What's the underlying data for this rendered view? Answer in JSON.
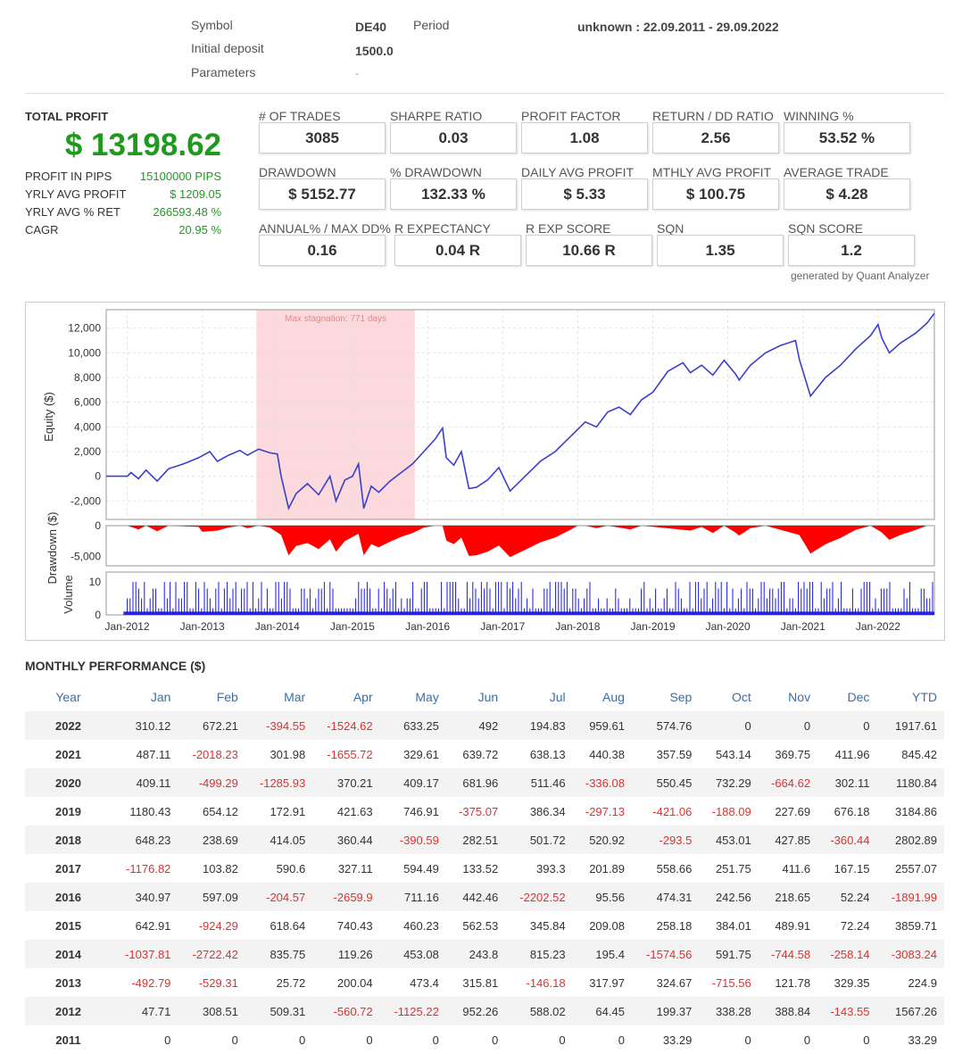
{
  "header": {
    "symbol_label": "Symbol",
    "symbol_value": "DE40",
    "period_label": "Period",
    "period_value": "unknown : 22.09.2011 - 29.09.2022",
    "deposit_label": "Initial deposit",
    "deposit_value": "1500.0",
    "params_label": "Parameters",
    "params_value": "-"
  },
  "total_profit": {
    "title": "TOTAL PROFIT",
    "value": "$ 13198.62",
    "rows": [
      {
        "key": "PROFIT IN PIPS",
        "value": "15100000 PIPS"
      },
      {
        "key": "YRLY AVG PROFIT",
        "value": "$ 1209.05"
      },
      {
        "key": "YRLY AVG % RET",
        "value": "266593.48 %"
      },
      {
        "key": "CAGR",
        "value": "20.95 %"
      }
    ]
  },
  "stats": [
    {
      "label": "# OF TRADES",
      "value": "3085"
    },
    {
      "label": "SHARPE RATIO",
      "value": "0.03"
    },
    {
      "label": "PROFIT FACTOR",
      "value": "1.08"
    },
    {
      "label": "RETURN / DD RATIO",
      "value": "2.56"
    },
    {
      "label": "WINNING %",
      "value": "53.52 %"
    },
    {
      "label": "DRAWDOWN",
      "value": "$ 5152.77"
    },
    {
      "label": "% DRAWDOWN",
      "value": "132.33 %"
    },
    {
      "label": "DAILY AVG PROFIT",
      "value": "$ 5.33"
    },
    {
      "label": "MTHLY AVG PROFIT",
      "value": "$ 100.75"
    },
    {
      "label": "AVERAGE TRADE",
      "value": "$ 4.28"
    },
    {
      "label": "ANNUAL% / MAX DD%",
      "value": "0.16"
    },
    {
      "label": "R EXPECTANCY",
      "value": "0.04 R"
    },
    {
      "label": "R EXP SCORE",
      "value": "10.66 R"
    },
    {
      "label": "SQN",
      "value": "1.35"
    },
    {
      "label": "SQN SCORE",
      "value": "1.2"
    }
  ],
  "generated_by": "generated by Quant Analyzer",
  "chart_data": {
    "type": "line",
    "equity_ylabel": "Equity ($)",
    "drawdown_ylabel": "Drawdown ($)",
    "volume_ylabel": "Volume",
    "equity_yticks": [
      "12,000",
      "10,000",
      "8,000",
      "6,000",
      "4,000",
      "2,000",
      "0",
      "-2,000"
    ],
    "drawdown_yticks": [
      "0",
      "-5,000"
    ],
    "volume_yticks": [
      "10",
      "0"
    ],
    "xticks": [
      "Jan-2012",
      "Jan-2013",
      "Jan-2014",
      "Jan-2015",
      "Jan-2016",
      "Jan-2017",
      "Jan-2018",
      "Jan-2019",
      "Jan-2020",
      "Jan-2021",
      "Jan-2022"
    ],
    "equity_ylim": [
      -3500,
      13500
    ],
    "drawdown_ylim": [
      -6500,
      0
    ],
    "volume_ylim": [
      0,
      13
    ],
    "x_range": [
      2011.72,
      2022.75
    ],
    "stagnation_label": "Max stagnation: 771 days",
    "stagnation_range": [
      2013.72,
      2015.83
    ],
    "equity_series": [
      [
        2011.72,
        0
      ],
      [
        2011.8,
        0
      ],
      [
        2012.0,
        0
      ],
      [
        2012.05,
        300
      ],
      [
        2012.15,
        -200
      ],
      [
        2012.25,
        500
      ],
      [
        2012.4,
        -400
      ],
      [
        2012.55,
        600
      ],
      [
        2012.75,
        1000
      ],
      [
        2012.95,
        1500
      ],
      [
        2013.1,
        2000
      ],
      [
        2013.2,
        1200
      ],
      [
        2013.35,
        1700
      ],
      [
        2013.5,
        2100
      ],
      [
        2013.6,
        1700
      ],
      [
        2013.75,
        2200
      ],
      [
        2013.9,
        1900
      ],
      [
        2014.0,
        1800
      ],
      [
        2014.05,
        0
      ],
      [
        2014.15,
        -2600
      ],
      [
        2014.25,
        -1400
      ],
      [
        2014.4,
        -600
      ],
      [
        2014.55,
        -1500
      ],
      [
        2014.7,
        0
      ],
      [
        2014.78,
        -2000
      ],
      [
        2014.9,
        -300
      ],
      [
        2015.0,
        0
      ],
      [
        2015.08,
        1000
      ],
      [
        2015.15,
        -2600
      ],
      [
        2015.25,
        -800
      ],
      [
        2015.35,
        -1300
      ],
      [
        2015.5,
        -400
      ],
      [
        2015.65,
        300
      ],
      [
        2015.8,
        1000
      ],
      [
        2015.95,
        2000
      ],
      [
        2016.1,
        3000
      ],
      [
        2016.2,
        3900
      ],
      [
        2016.25,
        1500
      ],
      [
        2016.35,
        900
      ],
      [
        2016.45,
        2000
      ],
      [
        2016.55,
        -1000
      ],
      [
        2016.65,
        -900
      ],
      [
        2016.8,
        -300
      ],
      [
        2016.95,
        700
      ],
      [
        2017.1,
        -1200
      ],
      [
        2017.3,
        0
      ],
      [
        2017.5,
        1200
      ],
      [
        2017.7,
        2000
      ],
      [
        2017.9,
        3200
      ],
      [
        2018.1,
        4400
      ],
      [
        2018.25,
        4000
      ],
      [
        2018.4,
        5200
      ],
      [
        2018.55,
        5600
      ],
      [
        2018.7,
        5000
      ],
      [
        2018.85,
        6200
      ],
      [
        2019.0,
        6800
      ],
      [
        2019.2,
        8500
      ],
      [
        2019.4,
        9200
      ],
      [
        2019.5,
        8400
      ],
      [
        2019.65,
        9000
      ],
      [
        2019.8,
        8200
      ],
      [
        2019.95,
        9400
      ],
      [
        2020.1,
        8300
      ],
      [
        2020.15,
        7800
      ],
      [
        2020.3,
        9000
      ],
      [
        2020.5,
        10000
      ],
      [
        2020.7,
        10600
      ],
      [
        2020.9,
        11000
      ],
      [
        2020.95,
        9500
      ],
      [
        2021.1,
        6500
      ],
      [
        2021.3,
        8000
      ],
      [
        2021.5,
        9000
      ],
      [
        2021.7,
        10300
      ],
      [
        2021.9,
        11400
      ],
      [
        2022.0,
        12300
      ],
      [
        2022.05,
        11200
      ],
      [
        2022.15,
        10000
      ],
      [
        2022.3,
        10800
      ],
      [
        2022.5,
        11600
      ],
      [
        2022.65,
        12400
      ],
      [
        2022.75,
        13200
      ]
    ],
    "drawdown_series": [
      [
        2011.72,
        0
      ],
      [
        2012.0,
        0
      ],
      [
        2012.15,
        -600
      ],
      [
        2012.25,
        0
      ],
      [
        2012.4,
        -900
      ],
      [
        2012.55,
        0
      ],
      [
        2012.95,
        -200
      ],
      [
        2013.0,
        -1000
      ],
      [
        2013.2,
        -800
      ],
      [
        2013.35,
        -300
      ],
      [
        2013.5,
        0
      ],
      [
        2013.6,
        -400
      ],
      [
        2013.75,
        0
      ],
      [
        2013.9,
        -300
      ],
      [
        2014.05,
        -1500
      ],
      [
        2014.15,
        -4800
      ],
      [
        2014.25,
        -3300
      ],
      [
        2014.4,
        -2800
      ],
      [
        2014.55,
        -3800
      ],
      [
        2014.7,
        -2200
      ],
      [
        2014.78,
        -4200
      ],
      [
        2014.9,
        -2500
      ],
      [
        2015.08,
        -1300
      ],
      [
        2015.15,
        -4800
      ],
      [
        2015.25,
        -3000
      ],
      [
        2015.35,
        -3500
      ],
      [
        2015.5,
        -2600
      ],
      [
        2015.65,
        -1800
      ],
      [
        2015.8,
        -1200
      ],
      [
        2015.95,
        -300
      ],
      [
        2016.1,
        0
      ],
      [
        2016.2,
        0
      ],
      [
        2016.25,
        -2400
      ],
      [
        2016.35,
        -3000
      ],
      [
        2016.45,
        -1900
      ],
      [
        2016.55,
        -4900
      ],
      [
        2016.65,
        -4800
      ],
      [
        2016.8,
        -4200
      ],
      [
        2016.95,
        -3200
      ],
      [
        2017.1,
        -5100
      ],
      [
        2017.3,
        -3900
      ],
      [
        2017.5,
        -2700
      ],
      [
        2017.7,
        -1900
      ],
      [
        2017.9,
        -700
      ],
      [
        2018.0,
        0
      ],
      [
        2018.1,
        0
      ],
      [
        2018.25,
        -400
      ],
      [
        2018.4,
        0
      ],
      [
        2018.7,
        -600
      ],
      [
        2018.85,
        0
      ],
      [
        2019.5,
        -800
      ],
      [
        2019.65,
        -200
      ],
      [
        2019.8,
        -1200
      ],
      [
        2019.95,
        0
      ],
      [
        2020.1,
        -1100
      ],
      [
        2020.15,
        -1600
      ],
      [
        2020.3,
        -400
      ],
      [
        2020.5,
        0
      ],
      [
        2020.95,
        -1500
      ],
      [
        2021.1,
        -4500
      ],
      [
        2021.3,
        -3000
      ],
      [
        2021.5,
        -2000
      ],
      [
        2021.7,
        -700
      ],
      [
        2021.9,
        0
      ],
      [
        2022.05,
        -1100
      ],
      [
        2022.15,
        -2300
      ],
      [
        2022.3,
        -1500
      ],
      [
        2022.5,
        -700
      ],
      [
        2022.65,
        0
      ],
      [
        2022.75,
        0
      ]
    ],
    "volume_note": "trade-volume bars 0-10 across full period"
  },
  "monthly": {
    "title": "MONTHLY PERFORMANCE ($)",
    "headers": [
      "Year",
      "Jan",
      "Feb",
      "Mar",
      "Apr",
      "May",
      "Jun",
      "Jul",
      "Aug",
      "Sep",
      "Oct",
      "Nov",
      "Dec",
      "YTD"
    ],
    "rows": [
      [
        "2022",
        "310.12",
        "672.21",
        "-394.55",
        "-1524.62",
        "633.25",
        "492",
        "194.83",
        "959.61",
        "574.76",
        "0",
        "0",
        "0",
        "1917.61"
      ],
      [
        "2021",
        "487.11",
        "-2018.23",
        "301.98",
        "-1655.72",
        "329.61",
        "639.72",
        "638.13",
        "440.38",
        "357.59",
        "543.14",
        "369.75",
        "411.96",
        "845.42"
      ],
      [
        "2020",
        "409.11",
        "-499.29",
        "-1285.93",
        "370.21",
        "409.17",
        "681.96",
        "511.46",
        "-336.08",
        "550.45",
        "732.29",
        "-664.62",
        "302.11",
        "1180.84"
      ],
      [
        "2019",
        "1180.43",
        "654.12",
        "172.91",
        "421.63",
        "746.91",
        "-375.07",
        "386.34",
        "-297.13",
        "-421.06",
        "-188.09",
        "227.69",
        "676.18",
        "3184.86"
      ],
      [
        "2018",
        "648.23",
        "238.69",
        "414.05",
        "360.44",
        "-390.59",
        "282.51",
        "501.72",
        "520.92",
        "-293.5",
        "453.01",
        "427.85",
        "-360.44",
        "2802.89"
      ],
      [
        "2017",
        "-1176.82",
        "103.82",
        "590.6",
        "327.11",
        "594.49",
        "133.52",
        "393.3",
        "201.89",
        "558.66",
        "251.75",
        "411.6",
        "167.15",
        "2557.07"
      ],
      [
        "2016",
        "340.97",
        "597.09",
        "-204.57",
        "-2659.9",
        "711.16",
        "442.46",
        "-2202.52",
        "95.56",
        "474.31",
        "242.56",
        "218.65",
        "52.24",
        "-1891.99"
      ],
      [
        "2015",
        "642.91",
        "-924.29",
        "618.64",
        "740.43",
        "460.23",
        "562.53",
        "345.84",
        "209.08",
        "258.18",
        "384.01",
        "489.91",
        "72.24",
        "3859.71"
      ],
      [
        "2014",
        "-1037.81",
        "-2722.42",
        "835.75",
        "119.26",
        "453.08",
        "243.8",
        "815.23",
        "195.4",
        "-1574.56",
        "591.75",
        "-744.58",
        "-258.14",
        "-3083.24"
      ],
      [
        "2013",
        "-492.79",
        "-529.31",
        "25.72",
        "200.04",
        "473.4",
        "315.81",
        "-146.18",
        "317.97",
        "324.67",
        "-715.56",
        "121.78",
        "329.35",
        "224.9"
      ],
      [
        "2012",
        "47.71",
        "308.51",
        "509.31",
        "-560.72",
        "-1125.22",
        "952.26",
        "588.02",
        "64.45",
        "199.37",
        "338.28",
        "388.84",
        "-143.55",
        "1567.26"
      ],
      [
        "2011",
        "0",
        "0",
        "0",
        "0",
        "0",
        "0",
        "0",
        "0",
        "33.29",
        "0",
        "0",
        "0",
        "33.29"
      ]
    ]
  }
}
